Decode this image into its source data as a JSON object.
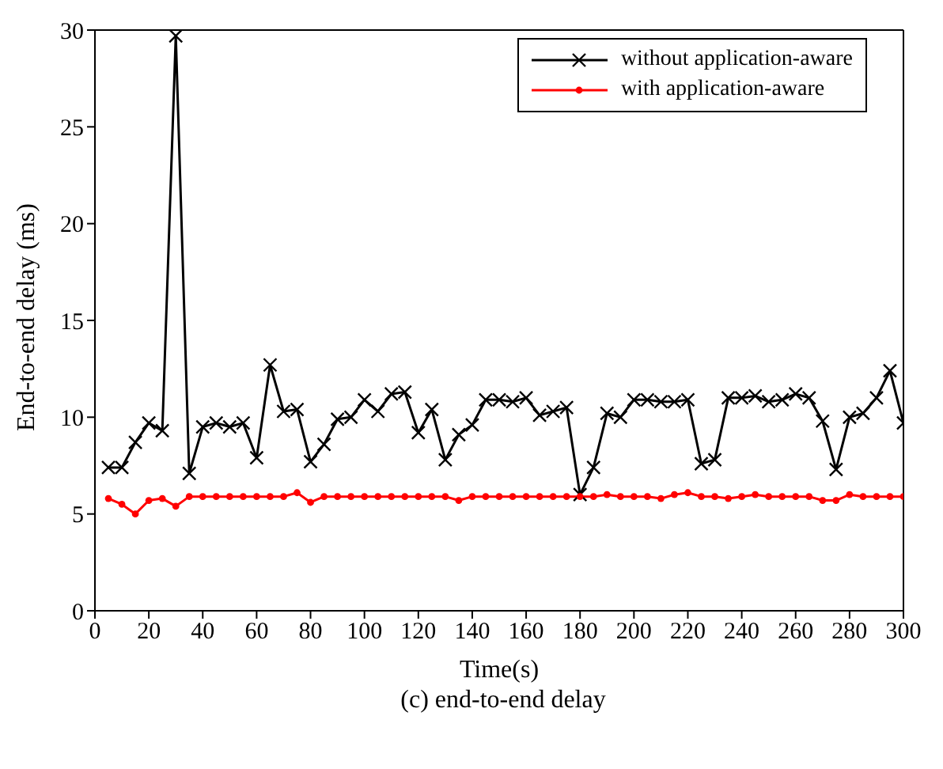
{
  "chart_data": {
    "type": "line",
    "xlabel": "Time(s)",
    "ylabel": "End-to-end delay (ms)",
    "annotations": [
      "(c) end-to-end delay"
    ],
    "x": [
      5,
      10,
      15,
      20,
      25,
      30,
      35,
      40,
      45,
      50,
      55,
      60,
      65,
      70,
      75,
      80,
      85,
      90,
      95,
      100,
      105,
      110,
      115,
      120,
      125,
      130,
      135,
      140,
      145,
      150,
      155,
      160,
      165,
      170,
      175,
      180,
      185,
      190,
      195,
      200,
      205,
      210,
      215,
      220,
      225,
      230,
      235,
      240,
      245,
      250,
      255,
      260,
      265,
      270,
      275,
      280,
      285,
      290,
      295,
      300
    ],
    "series": [
      {
        "name": "without application-aware",
        "color": "#000000",
        "marker": "cross",
        "values": [
          7.4,
          7.4,
          8.7,
          9.7,
          9.3,
          29.7,
          7.1,
          9.5,
          9.7,
          9.5,
          9.7,
          7.9,
          12.7,
          10.3,
          10.4,
          7.7,
          8.6,
          9.9,
          10.0,
          10.9,
          10.3,
          11.2,
          11.3,
          9.2,
          10.4,
          7.8,
          9.1,
          9.6,
          10.9,
          10.9,
          10.8,
          11.0,
          10.1,
          10.3,
          10.5,
          6.0,
          7.4,
          10.2,
          10.0,
          10.9,
          10.9,
          10.8,
          10.8,
          10.9,
          7.6,
          7.8,
          11.0,
          11.0,
          11.1,
          10.8,
          10.9,
          11.2,
          11.0,
          9.8,
          7.3,
          10.0,
          10.2,
          11.0,
          12.4,
          9.7
        ]
      },
      {
        "name": "with application-aware",
        "color": "#ff0000",
        "marker": "circle",
        "values": [
          5.8,
          5.5,
          5.0,
          5.7,
          5.8,
          5.4,
          5.9,
          5.9,
          5.9,
          5.9,
          5.9,
          5.9,
          5.9,
          5.9,
          6.1,
          5.6,
          5.9,
          5.9,
          5.9,
          5.9,
          5.9,
          5.9,
          5.9,
          5.9,
          5.9,
          5.9,
          5.7,
          5.9,
          5.9,
          5.9,
          5.9,
          5.9,
          5.9,
          5.9,
          5.9,
          5.9,
          5.9,
          6.0,
          5.9,
          5.9,
          5.9,
          5.8,
          6.0,
          6.1,
          5.9,
          5.9,
          5.8,
          5.9,
          6.0,
          5.9,
          5.9,
          5.9,
          5.9,
          5.7,
          5.7,
          6.0,
          5.9,
          5.9,
          5.9,
          5.9
        ]
      }
    ],
    "xlim": [
      0,
      300
    ],
    "xticks": [
      0,
      20,
      40,
      60,
      80,
      100,
      120,
      140,
      160,
      180,
      200,
      220,
      240,
      260,
      280,
      300
    ],
    "ylim": [
      0,
      30
    ],
    "yticks": [
      0,
      5,
      10,
      15,
      20,
      25,
      30
    ],
    "grid": false,
    "legend": "top right",
    "line_style": "solid"
  }
}
